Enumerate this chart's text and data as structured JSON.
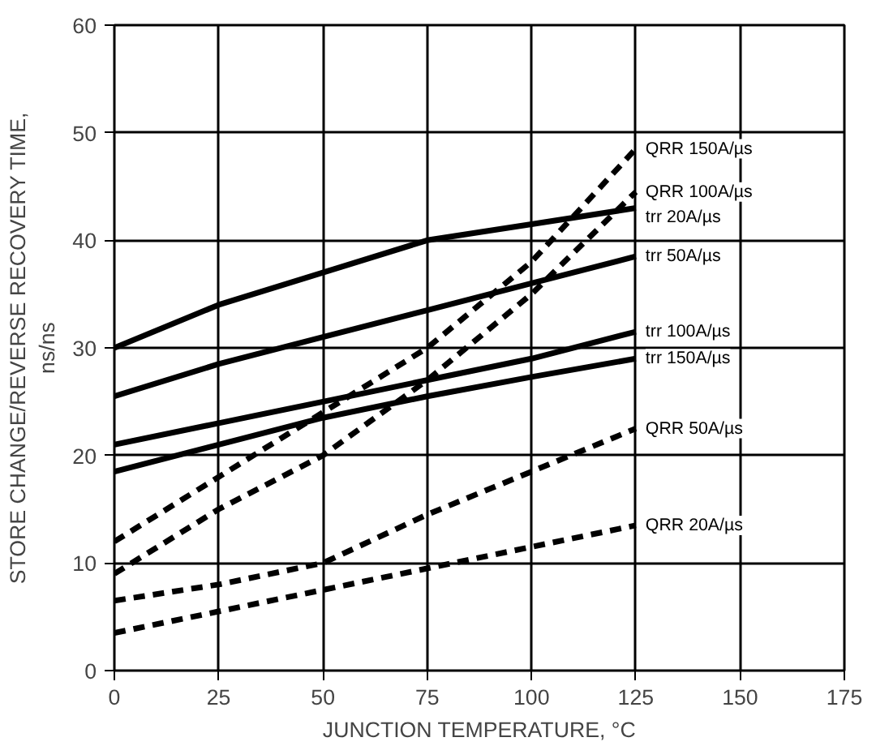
{
  "chart_data": {
    "type": "line",
    "xlabel": "JUNCTION TEMPERATURE, °C",
    "ylabel": "STORE CHANGE/REVERSE RECOVERY TIME,\nns/ns",
    "x": [
      0,
      25,
      50,
      75,
      100,
      125
    ],
    "xlim": [
      0,
      175
    ],
    "xticks": [
      0,
      25,
      50,
      75,
      100,
      125,
      150,
      175
    ],
    "ylim": [
      0,
      60
    ],
    "yticks": [
      0,
      10,
      20,
      30,
      40,
      50,
      60
    ],
    "grid": true,
    "series": [
      {
        "name": "QRR 150A/µs",
        "color": "#000000",
        "line_style": "dashed",
        "values": [
          12,
          18,
          24,
          30,
          38,
          48.5
        ]
      },
      {
        "name": "QRR 100A/µs",
        "color": "#000000",
        "line_style": "dashed",
        "values": [
          9,
          15,
          20,
          27,
          35,
          44.5
        ]
      },
      {
        "name": "trr 20A/µs",
        "color": "#000000",
        "line_style": "solid",
        "values": [
          30,
          34,
          37,
          40,
          41.5,
          43
        ]
      },
      {
        "name": "trr 50A/µs",
        "color": "#000000",
        "line_style": "solid",
        "values": [
          25.5,
          28.5,
          31,
          33.5,
          36,
          38.5
        ]
      },
      {
        "name": "trr 100A/µs",
        "color": "#000000",
        "line_style": "solid",
        "values": [
          21,
          23,
          25,
          27,
          29,
          31.5
        ]
      },
      {
        "name": "trr 150A/µs",
        "color": "#000000",
        "line_style": "solid",
        "values": [
          18.5,
          21,
          23.5,
          25.5,
          27.3,
          29
        ]
      },
      {
        "name": "QRR 50A/µs",
        "color": "#000000",
        "line_style": "dashed",
        "values": [
          6.5,
          8,
          10,
          14.5,
          18.5,
          22.5
        ]
      },
      {
        "name": "QRR 20A/µs",
        "color": "#000000",
        "line_style": "dashed",
        "values": [
          3.5,
          5.5,
          7.5,
          9.5,
          11.5,
          13.5
        ]
      }
    ]
  }
}
